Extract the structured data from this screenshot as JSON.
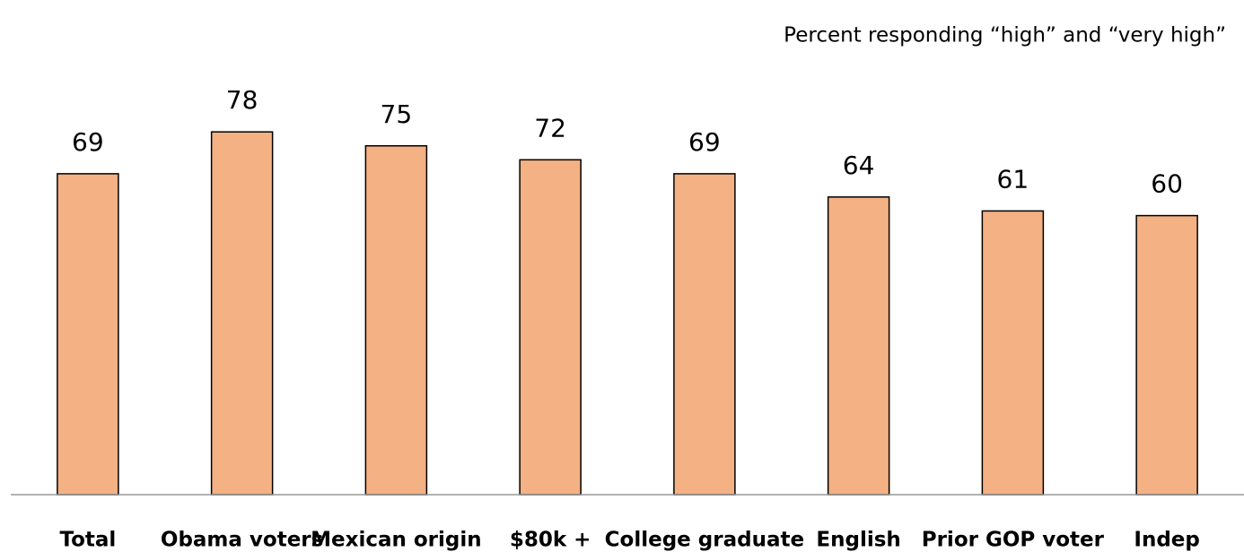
{
  "chart_data": {
    "type": "bar",
    "subtitle": "Percent responding “high” and “very high”",
    "categories": [
      "Total",
      "Obama voters",
      "Mexican origin",
      "$80k +",
      "College graduate",
      "English",
      "Prior GOP voter",
      "Indep"
    ],
    "values": [
      69,
      78,
      75,
      72,
      69,
      64,
      61,
      60
    ],
    "color": "#f4b183",
    "ylim": [
      0,
      100
    ]
  }
}
